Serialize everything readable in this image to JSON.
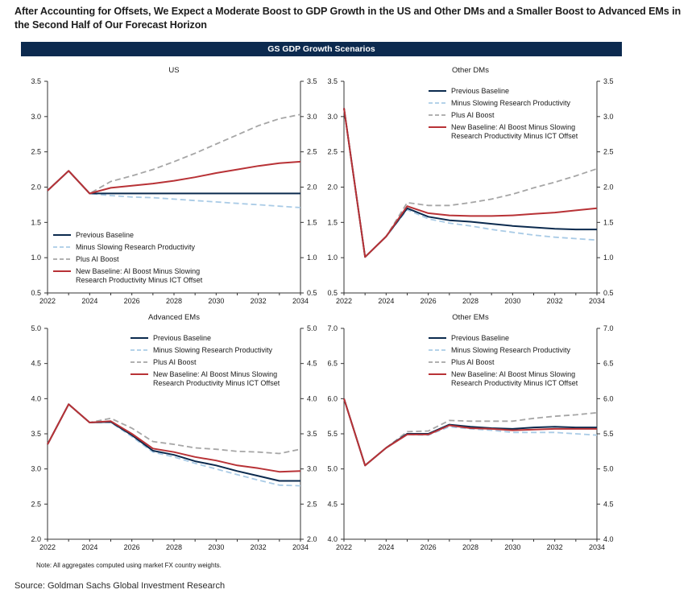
{
  "page": {
    "title": "After Accounting for Offsets, We Expect a Moderate Boost to GDP Growth in the US and Other DMs and a Smaller Boost to Advanced EMs in the Second Half of Our Forecast Horizon",
    "banner": "GS GDP Growth Scenarios",
    "note": "Note: All aggregates computed using market FX country weights.",
    "source": "Source: Goldman Sachs Global Investment Research"
  },
  "series_styles": [
    {
      "name": "Previous Baseline",
      "color": "#0b2a4e",
      "dash": "none",
      "width": 2
    },
    {
      "name": "Minus Slowing Research Productivity",
      "color": "#a9cbe6",
      "dash": "7,4",
      "width": 1.8
    },
    {
      "name": "Plus AI Boost",
      "color": "#a6a6a6",
      "dash": "7,4",
      "width": 1.8
    },
    {
      "name": "New Baseline: AI Boost Minus Slowing Research Productivity Minus ICT Offset",
      "legend_lines": [
        "New Baseline: AI Boost Minus Slowing",
        "Research Productivity Minus ICT Offset"
      ],
      "color": "#b83236",
      "dash": "none",
      "width": 2
    }
  ],
  "chart_data": [
    {
      "type": "line",
      "title": "US",
      "x": [
        2022,
        2023,
        2024,
        2025,
        2026,
        2027,
        2028,
        2029,
        2030,
        2031,
        2032,
        2033,
        2034
      ],
      "xticks": [
        "2022",
        "2024",
        "2026",
        "2028",
        "2030",
        "2032",
        "2034"
      ],
      "ylim": [
        0.5,
        3.5
      ],
      "yticks": [
        "0.5",
        "1.0",
        "1.5",
        "2.0",
        "2.5",
        "3.0",
        "3.5"
      ],
      "legend_position": "bottom-left",
      "series": [
        {
          "name": "Previous Baseline",
          "values": [
            1.95,
            2.23,
            1.91,
            1.91,
            1.91,
            1.91,
            1.91,
            1.91,
            1.91,
            1.91,
            1.91,
            1.91,
            1.91
          ]
        },
        {
          "name": "Minus Slowing Research Productivity",
          "values": [
            1.95,
            2.23,
            1.91,
            1.88,
            1.86,
            1.85,
            1.83,
            1.81,
            1.79,
            1.77,
            1.75,
            1.73,
            1.71
          ]
        },
        {
          "name": "Plus AI Boost",
          "values": [
            1.95,
            2.23,
            1.91,
            2.08,
            2.16,
            2.25,
            2.36,
            2.48,
            2.61,
            2.74,
            2.87,
            2.97,
            3.03
          ]
        },
        {
          "name": "New Baseline: AI Boost Minus Slowing Research Productivity Minus ICT Offset",
          "values": [
            1.95,
            2.23,
            1.91,
            1.99,
            2.02,
            2.05,
            2.09,
            2.14,
            2.2,
            2.25,
            2.3,
            2.34,
            2.36
          ]
        }
      ]
    },
    {
      "type": "line",
      "title": "Other DMs",
      "x": [
        2022,
        2023,
        2024,
        2025,
        2026,
        2027,
        2028,
        2029,
        2030,
        2031,
        2032,
        2033,
        2034
      ],
      "xticks": [
        "2022",
        "2024",
        "2026",
        "2028",
        "2030",
        "2032",
        "2034"
      ],
      "ylim": [
        0.5,
        3.5
      ],
      "yticks": [
        "0.5",
        "1.0",
        "1.5",
        "2.0",
        "2.5",
        "3.0",
        "3.5"
      ],
      "legend_position": "top-right",
      "series": [
        {
          "name": "Previous Baseline",
          "values": [
            3.12,
            1.01,
            1.3,
            1.7,
            1.58,
            1.53,
            1.51,
            1.48,
            1.45,
            1.43,
            1.41,
            1.4,
            1.4
          ]
        },
        {
          "name": "Minus Slowing Research Productivity",
          "values": [
            3.12,
            1.01,
            1.3,
            1.68,
            1.55,
            1.49,
            1.45,
            1.4,
            1.36,
            1.32,
            1.29,
            1.27,
            1.25
          ]
        },
        {
          "name": "Plus AI Boost",
          "values": [
            3.12,
            1.01,
            1.3,
            1.78,
            1.74,
            1.74,
            1.78,
            1.83,
            1.9,
            1.99,
            2.07,
            2.16,
            2.26
          ]
        },
        {
          "name": "New Baseline: AI Boost Minus Slowing Research Productivity Minus ICT Offset",
          "values": [
            3.12,
            1.01,
            1.3,
            1.73,
            1.63,
            1.6,
            1.59,
            1.59,
            1.6,
            1.62,
            1.64,
            1.67,
            1.7
          ]
        }
      ]
    },
    {
      "type": "line",
      "title": "Advanced EMs",
      "x": [
        2022,
        2023,
        2024,
        2025,
        2026,
        2027,
        2028,
        2029,
        2030,
        2031,
        2032,
        2033,
        2034
      ],
      "xticks": [
        "2022",
        "2024",
        "2026",
        "2028",
        "2030",
        "2032",
        "2034"
      ],
      "ylim": [
        2.0,
        5.0
      ],
      "yticks": [
        "2.0",
        "2.5",
        "3.0",
        "3.5",
        "4.0",
        "4.5",
        "5.0"
      ],
      "legend_position": "top-right",
      "series": [
        {
          "name": "Previous Baseline",
          "values": [
            3.35,
            3.92,
            3.66,
            3.67,
            3.48,
            3.26,
            3.2,
            3.11,
            3.05,
            2.97,
            2.9,
            2.83,
            2.83
          ]
        },
        {
          "name": "Minus Slowing Research Productivity",
          "values": [
            3.35,
            3.92,
            3.66,
            3.66,
            3.46,
            3.24,
            3.17,
            3.08,
            3.0,
            2.92,
            2.84,
            2.77,
            2.76
          ]
        },
        {
          "name": "Plus AI Boost",
          "values": [
            3.35,
            3.92,
            3.66,
            3.72,
            3.58,
            3.39,
            3.35,
            3.3,
            3.28,
            3.25,
            3.24,
            3.22,
            3.28
          ]
        },
        {
          "name": "New Baseline: AI Boost Minus Slowing Research Productivity Minus ICT Offset",
          "values": [
            3.35,
            3.92,
            3.66,
            3.68,
            3.5,
            3.29,
            3.24,
            3.17,
            3.12,
            3.05,
            3.01,
            2.96,
            2.97
          ]
        }
      ]
    },
    {
      "type": "line",
      "title": "Other EMs",
      "x": [
        2022,
        2023,
        2024,
        2025,
        2026,
        2027,
        2028,
        2029,
        2030,
        2031,
        2032,
        2033,
        2034
      ],
      "xticks": [
        "2022",
        "2024",
        "2026",
        "2028",
        "2030",
        "2032",
        "2034"
      ],
      "ylim": [
        4.0,
        7.0
      ],
      "yticks": [
        "4.0",
        "4.5",
        "5.0",
        "5.5",
        "6.0",
        "6.5",
        "7.0"
      ],
      "legend_position": "top-right",
      "series": [
        {
          "name": "Previous Baseline",
          "values": [
            6.0,
            5.05,
            5.3,
            5.5,
            5.5,
            5.63,
            5.6,
            5.58,
            5.57,
            5.59,
            5.6,
            5.59,
            5.59
          ]
        },
        {
          "name": "Minus Slowing Research Productivity",
          "values": [
            6.0,
            5.05,
            5.3,
            5.49,
            5.48,
            5.6,
            5.57,
            5.55,
            5.52,
            5.52,
            5.52,
            5.5,
            5.48
          ]
        },
        {
          "name": "Plus AI Boost",
          "values": [
            6.0,
            5.05,
            5.3,
            5.53,
            5.54,
            5.69,
            5.68,
            5.68,
            5.68,
            5.72,
            5.75,
            5.77,
            5.8
          ]
        },
        {
          "name": "New Baseline: AI Boost Minus Slowing Research Productivity Minus ICT Offset",
          "values": [
            6.0,
            5.05,
            5.3,
            5.49,
            5.49,
            5.62,
            5.58,
            5.57,
            5.55,
            5.56,
            5.57,
            5.57,
            5.57
          ]
        }
      ]
    }
  ]
}
